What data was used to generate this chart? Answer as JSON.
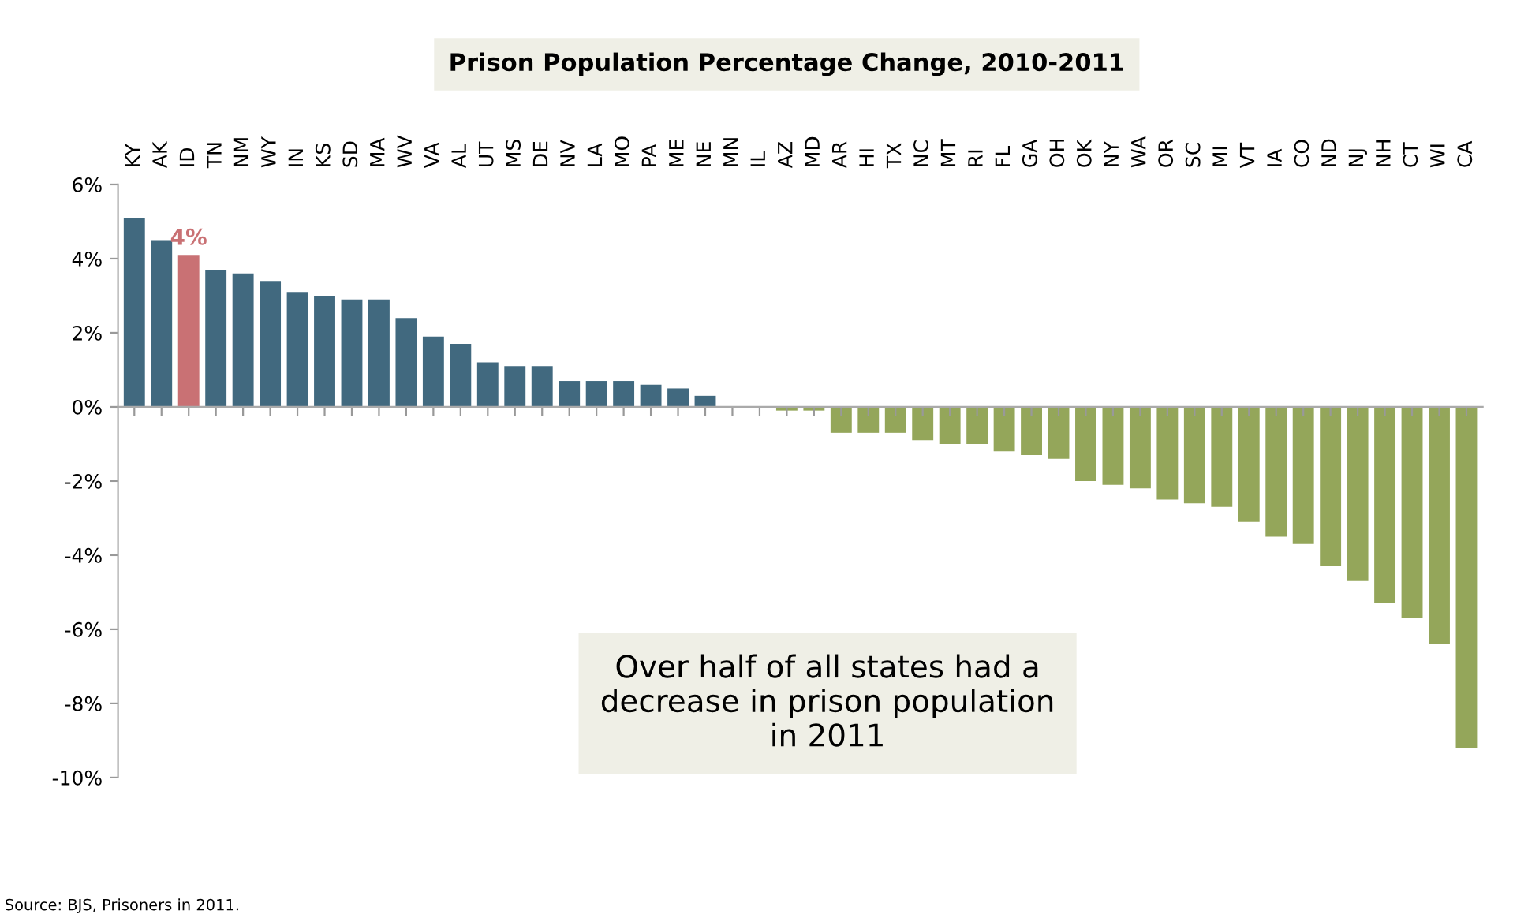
{
  "chart_data": {
    "type": "bar",
    "title": "Prison Population Percentage Change, 2010-2011",
    "categories": [
      "KY",
      "AK",
      "ID",
      "TN",
      "NM",
      "WY",
      "IN",
      "KS",
      "SD",
      "MA",
      "WV",
      "VA",
      "AL",
      "UT",
      "MS",
      "DE",
      "NV",
      "LA",
      "MO",
      "PA",
      "ME",
      "NE",
      "MN",
      "IL",
      "AZ",
      "MD",
      "AR",
      "HI",
      "TX",
      "NC",
      "MT",
      "RI",
      "FL",
      "GA",
      "OH",
      "OK",
      "NY",
      "WA",
      "OR",
      "SC",
      "MI",
      "VT",
      "IA",
      "CO",
      "ND",
      "NJ",
      "NH",
      "CT",
      "WI",
      "CA"
    ],
    "values": [
      5.1,
      4.5,
      4.1,
      3.7,
      3.6,
      3.4,
      3.1,
      3.0,
      2.9,
      2.9,
      2.4,
      1.9,
      1.7,
      1.2,
      1.1,
      1.1,
      0.7,
      0.7,
      0.7,
      0.6,
      0.5,
      0.3,
      0,
      0,
      -0.1,
      -0.1,
      -0.7,
      -0.7,
      -0.7,
      -0.9,
      -1.0,
      -1.0,
      -1.2,
      -1.3,
      -1.4,
      -2.0,
      -2.1,
      -2.2,
      -2.5,
      -2.6,
      -2.7,
      -3.1,
      -3.5,
      -3.7,
      -4.3,
      -4.7,
      -5.3,
      -5.7,
      -6.4,
      -9.2
    ],
    "colors": [
      "#41697f",
      "#41697f",
      "#c97174",
      "#41697f",
      "#41697f",
      "#41697f",
      "#41697f",
      "#41697f",
      "#41697f",
      "#41697f",
      "#41697f",
      "#41697f",
      "#41697f",
      "#41697f",
      "#41697f",
      "#41697f",
      "#41697f",
      "#41697f",
      "#41697f",
      "#41697f",
      "#41697f",
      "#41697f",
      "#41697f",
      "#41697f",
      "#94a65a",
      "#94a65a",
      "#94a65a",
      "#94a65a",
      "#94a65a",
      "#94a65a",
      "#94a65a",
      "#94a65a",
      "#94a65a",
      "#94a65a",
      "#94a65a",
      "#94a65a",
      "#94a65a",
      "#94a65a",
      "#94a65a",
      "#94a65a",
      "#94a65a",
      "#94a65a",
      "#94a65a",
      "#94a65a",
      "#94a65a",
      "#94a65a",
      "#94a65a",
      "#94a65a",
      "#94a65a",
      "#94a65a"
    ],
    "value_labels": [
      null,
      null,
      "4%",
      null,
      null,
      null,
      null,
      null,
      null,
      null,
      null,
      null,
      null,
      null,
      null,
      null,
      null,
      null,
      null,
      null,
      null,
      null,
      null,
      null,
      null,
      null,
      null,
      null,
      null,
      null,
      null,
      null,
      null,
      null,
      null,
      null,
      null,
      null,
      null,
      null,
      null,
      null,
      null,
      null,
      null,
      null,
      null,
      null,
      null,
      null
    ],
    "ylim": [
      -10,
      6
    ],
    "yticks": [
      {
        "value": -10,
        "label": "-10%"
      },
      {
        "value": -8,
        "label": "-8%"
      },
      {
        "value": -6,
        "label": "-6%"
      },
      {
        "value": -4,
        "label": "-4%"
      },
      {
        "value": -2,
        "label": "-2%"
      },
      {
        "value": 0,
        "label": "0%"
      },
      {
        "value": 2,
        "label": "2%"
      },
      {
        "value": 4,
        "label": "4%"
      },
      {
        "value": 6,
        "label": "6%"
      }
    ],
    "legend": false,
    "annotations": [
      "Over half of all states had a decrease in prison population in 2011",
      "Source: BJS, Prisoners in 2011."
    ]
  }
}
